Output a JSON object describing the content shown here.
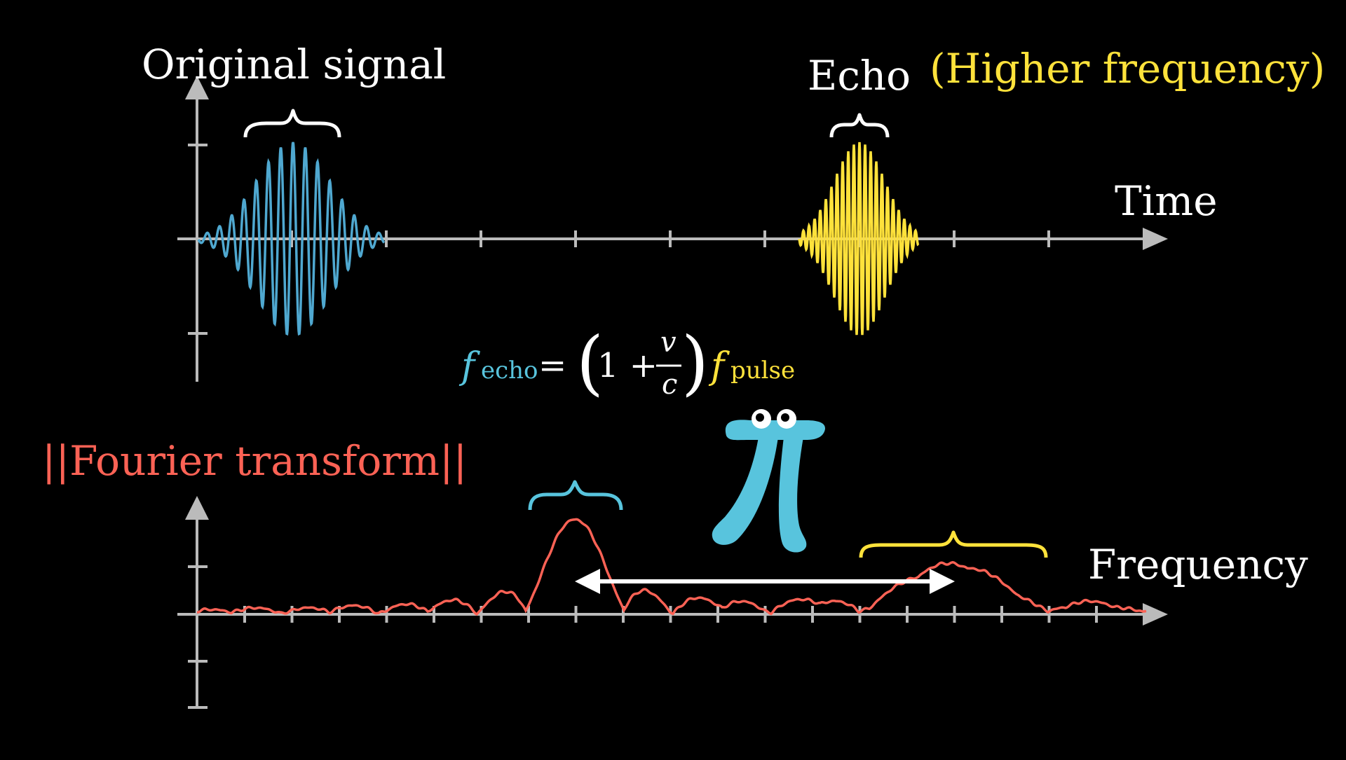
{
  "colors": {
    "background": "#000000",
    "axis": "#bbbbbb",
    "white": "#ffffff",
    "original_signal": "#4fa8d0",
    "echo_signal": "#ffe23b",
    "fourier": "#fc6255",
    "pi_creature": "#58c4dd"
  },
  "time_plot": {
    "title": "Original signal",
    "echo_label": "Echo",
    "echo_note": "(Higher frequency)",
    "axis_label": "Time"
  },
  "formula": {
    "f": "f",
    "echo_subscript": "echo",
    "equals": "=",
    "open_paren": "(",
    "one_plus": "1 +",
    "v": "v",
    "c": "c",
    "close_paren": ")",
    "pulse_subscript": "pulse"
  },
  "frequency_plot": {
    "title": "||Fourier transform||",
    "axis_label": "Frequency"
  },
  "icons": {
    "pi_creature": "pi-creature-icon",
    "double_arrow": "double-arrow-icon"
  }
}
